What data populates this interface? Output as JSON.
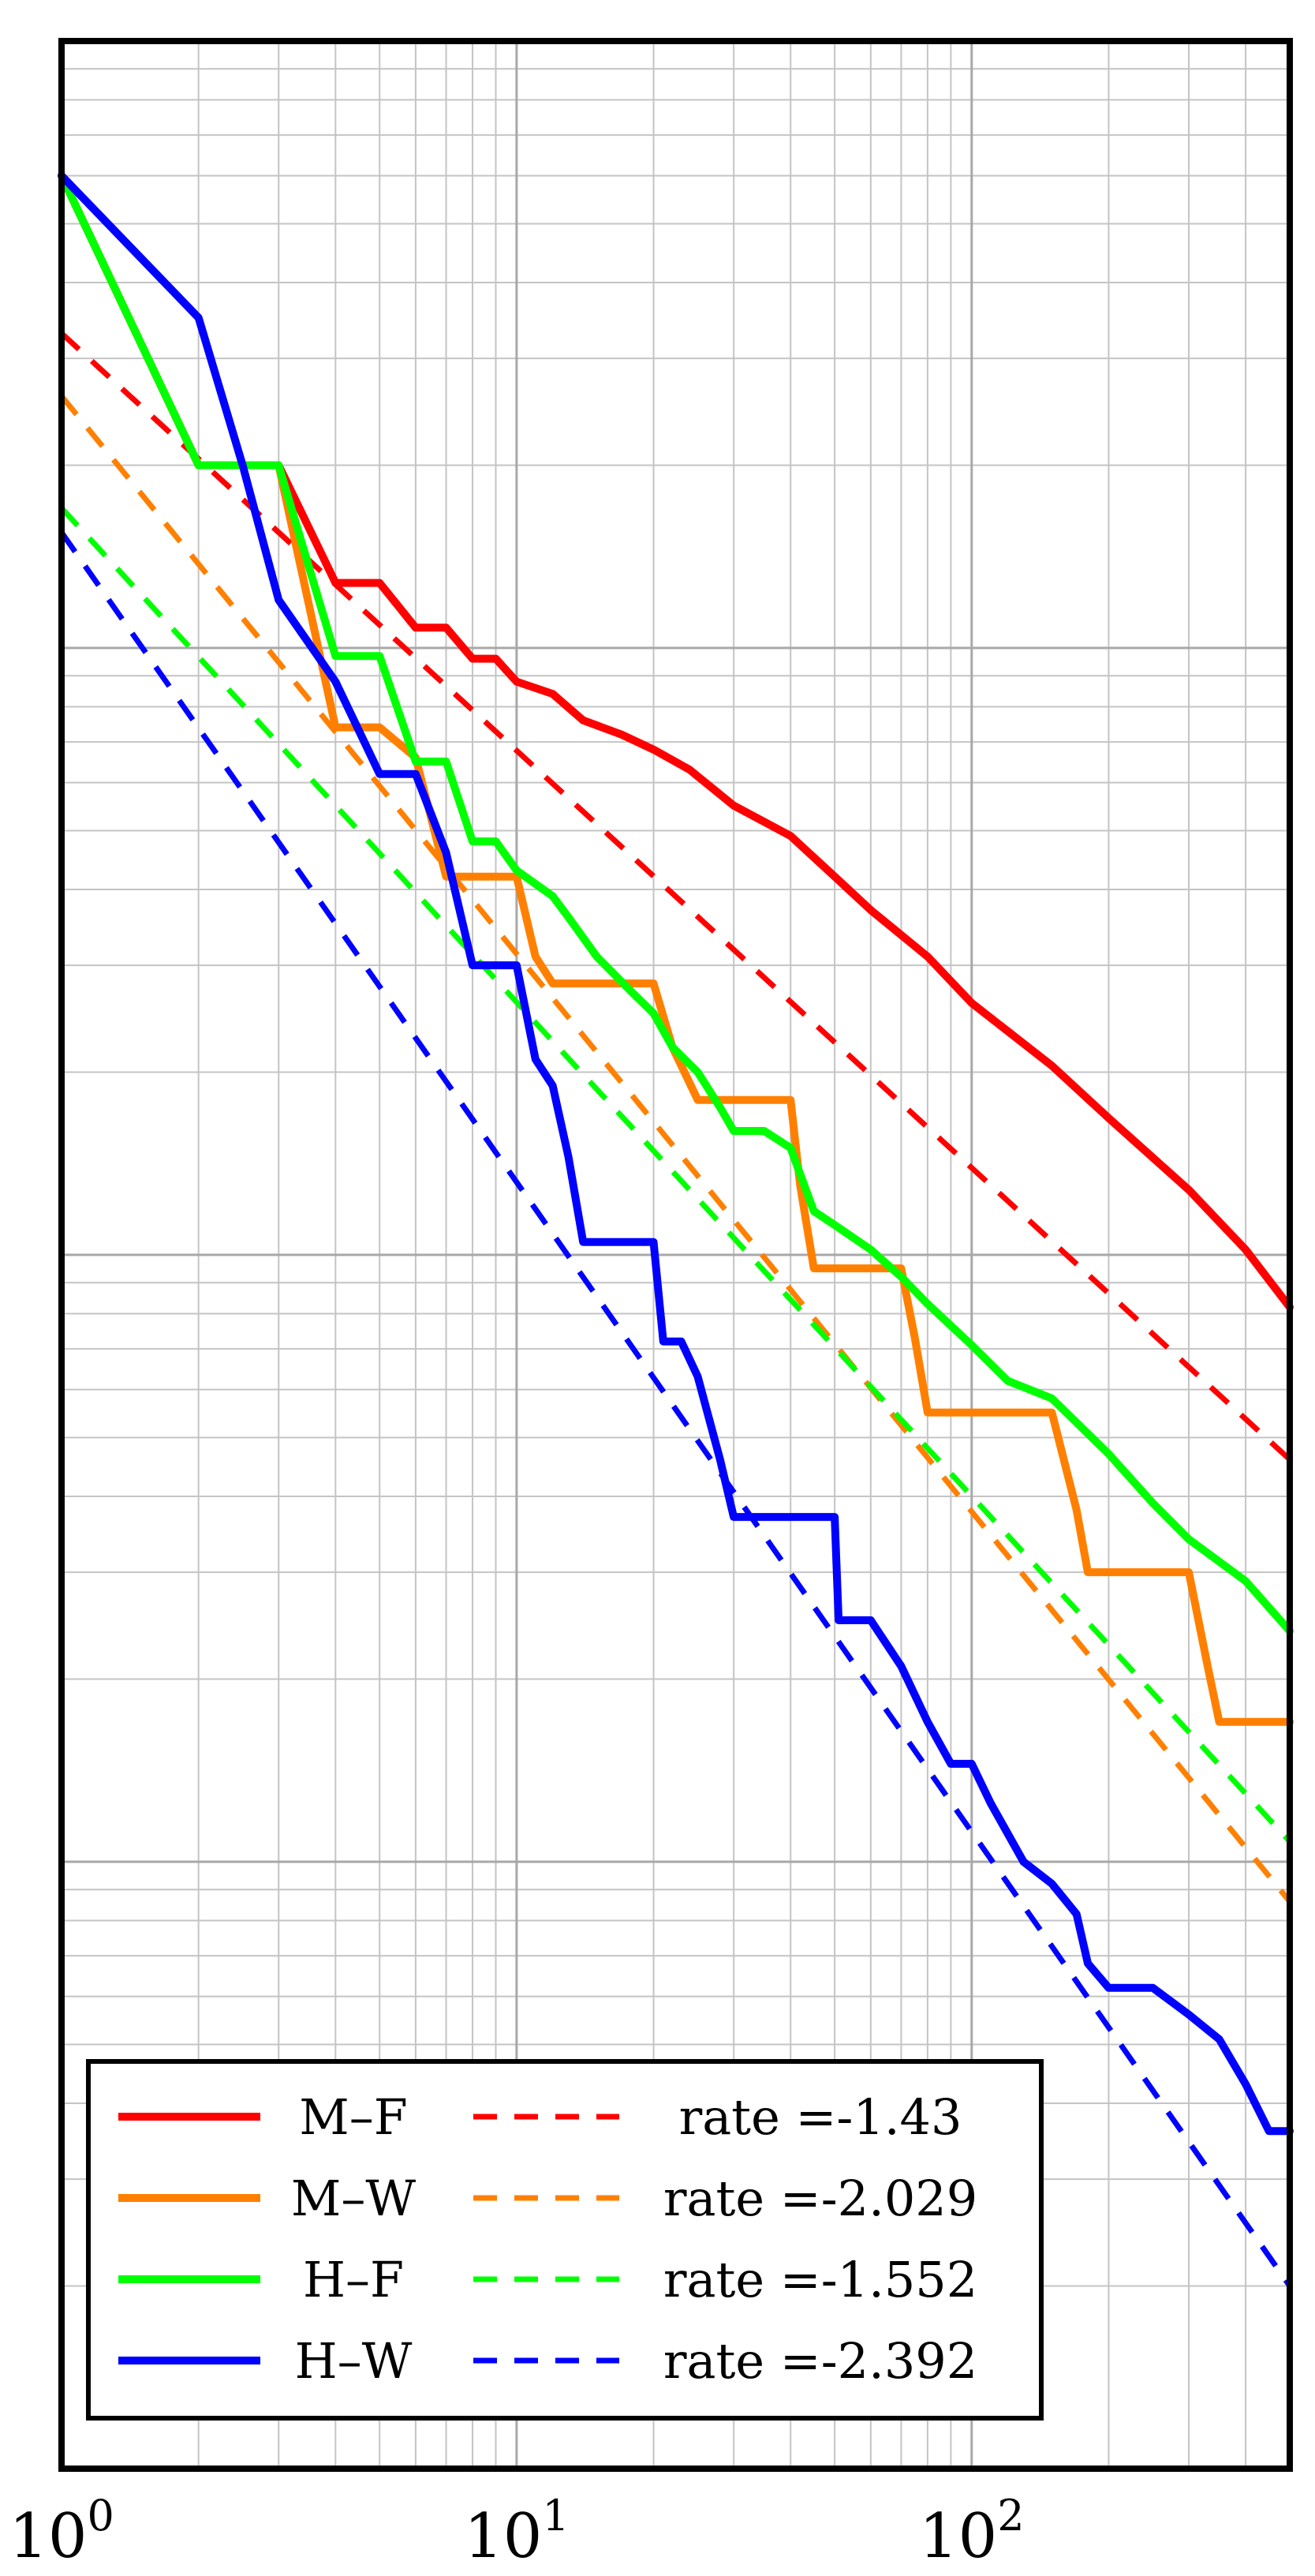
{
  "chart_data": {
    "type": "line",
    "title": "",
    "xlabel": "",
    "ylabel": "",
    "x_scale": "log",
    "y_scale": "log",
    "xlim": [
      1,
      500
    ],
    "ylim": [
      0.0001,
      1
    ],
    "grid": true,
    "legend_position": "bottom-left",
    "x_ticks": [
      {
        "value": 1,
        "base": "10",
        "exp": "0"
      },
      {
        "value": 10,
        "base": "10",
        "exp": "1"
      },
      {
        "value": 100,
        "base": "10",
        "exp": "2"
      }
    ],
    "series": [
      {
        "name": "M–F",
        "color": "#ff0000",
        "style": "solid",
        "x": [
          1,
          2,
          3,
          4,
          5,
          6,
          7,
          8,
          9,
          10,
          12,
          14,
          17,
          20,
          24,
          30,
          40,
          50,
          60,
          80,
          100,
          150,
          200,
          300,
          400,
          500
        ],
        "y": [
          0.6,
          0.2,
          0.2,
          0.128,
          0.128,
          0.108,
          0.108,
          0.096,
          0.096,
          0.088,
          0.084,
          0.076,
          0.072,
          0.068,
          0.063,
          0.055,
          0.049,
          0.042,
          0.037,
          0.031,
          0.026,
          0.0205,
          0.0168,
          0.0128,
          0.0102,
          0.0082
        ]
      },
      {
        "name": "M–W",
        "color": "#ff8000",
        "style": "solid",
        "x": [
          1,
          2,
          3,
          4,
          5,
          6,
          7,
          8,
          9,
          10,
          11,
          12,
          15,
          20,
          22,
          25,
          30,
          35,
          40,
          42,
          45,
          50,
          60,
          70,
          75,
          80,
          90,
          100,
          150,
          170,
          180,
          200,
          300,
          330,
          350,
          500
        ],
        "y": [
          0.6,
          0.2,
          0.2,
          0.074,
          0.074,
          0.066,
          0.042,
          0.042,
          0.042,
          0.042,
          0.031,
          0.028,
          0.028,
          0.028,
          0.022,
          0.018,
          0.018,
          0.018,
          0.018,
          0.013,
          0.0095,
          0.0095,
          0.0095,
          0.0095,
          0.0073,
          0.0055,
          0.0055,
          0.0055,
          0.0055,
          0.0038,
          0.003,
          0.003,
          0.003,
          0.0021,
          0.0017,
          0.0017
        ]
      },
      {
        "name": "H–F",
        "color": "#00ff00",
        "style": "solid",
        "x": [
          1,
          2,
          3,
          4,
          5,
          6,
          7,
          8,
          9,
          10,
          12,
          13,
          15,
          18,
          20,
          22,
          25,
          28,
          30,
          35,
          40,
          45,
          50,
          60,
          70,
          80,
          100,
          120,
          150,
          200,
          250,
          300,
          400,
          500
        ],
        "y": [
          0.6,
          0.2,
          0.2,
          0.097,
          0.097,
          0.065,
          0.065,
          0.048,
          0.048,
          0.043,
          0.039,
          0.036,
          0.031,
          0.027,
          0.025,
          0.022,
          0.02,
          0.0175,
          0.016,
          0.016,
          0.015,
          0.0118,
          0.0112,
          0.0102,
          0.0092,
          0.0083,
          0.0071,
          0.0062,
          0.0058,
          0.0047,
          0.0039,
          0.0034,
          0.0029,
          0.0024
        ]
      },
      {
        "name": "H–W",
        "color": "#0000ff",
        "style": "solid",
        "x": [
          1,
          2,
          2.5,
          3,
          4,
          5,
          6,
          7,
          8,
          10,
          11,
          12,
          13,
          14,
          15,
          20,
          21,
          23,
          25,
          28,
          30,
          35,
          40,
          50,
          51,
          60,
          70,
          80,
          90,
          100,
          110,
          130,
          150,
          170,
          180,
          200,
          250,
          300,
          350,
          400,
          450,
          500
        ],
        "y": [
          0.6,
          0.35,
          0.2,
          0.12,
          0.088,
          0.062,
          0.062,
          0.046,
          0.03,
          0.03,
          0.021,
          0.019,
          0.0145,
          0.0105,
          0.0105,
          0.0105,
          0.0072,
          0.0072,
          0.0063,
          0.0046,
          0.0037,
          0.0037,
          0.0037,
          0.0037,
          0.0025,
          0.0025,
          0.0021,
          0.0017,
          0.00145,
          0.00145,
          0.00125,
          0.001,
          0.00092,
          0.00082,
          0.00068,
          0.00062,
          0.00062,
          0.00056,
          0.00051,
          0.00043,
          0.00036,
          0.00036
        ]
      },
      {
        "name": "rate =-1.43",
        "color": "#ff0000",
        "style": "dashed",
        "x": [
          1,
          500
        ],
        "y": [
          0.33,
          0.0046
        ]
      },
      {
        "name": "rate =-2.029",
        "color": "#ff8000",
        "style": "dashed",
        "x": [
          1,
          500
        ],
        "y": [
          0.26,
          0.00086
        ]
      },
      {
        "name": "rate =-1.552",
        "color": "#00ff00",
        "style": "dashed",
        "x": [
          1,
          500
        ],
        "y": [
          0.17,
          0.00108
        ]
      },
      {
        "name": "rate =-2.392",
        "color": "#0000ff",
        "style": "dashed",
        "x": [
          1,
          500
        ],
        "y": [
          0.155,
          0.0002
        ]
      }
    ],
    "legend": {
      "rows": [
        {
          "solid_label": "M–F",
          "dashed_label": "rate =-1.43",
          "color": "#ff0000"
        },
        {
          "solid_label": "M–W",
          "dashed_label": "rate =-2.029",
          "color": "#ff8000"
        },
        {
          "solid_label": "H–F",
          "dashed_label": "rate =-1.552",
          "color": "#00ff00"
        },
        {
          "solid_label": "H–W",
          "dashed_label": "rate =-2.392",
          "color": "#0000ff"
        }
      ]
    }
  }
}
